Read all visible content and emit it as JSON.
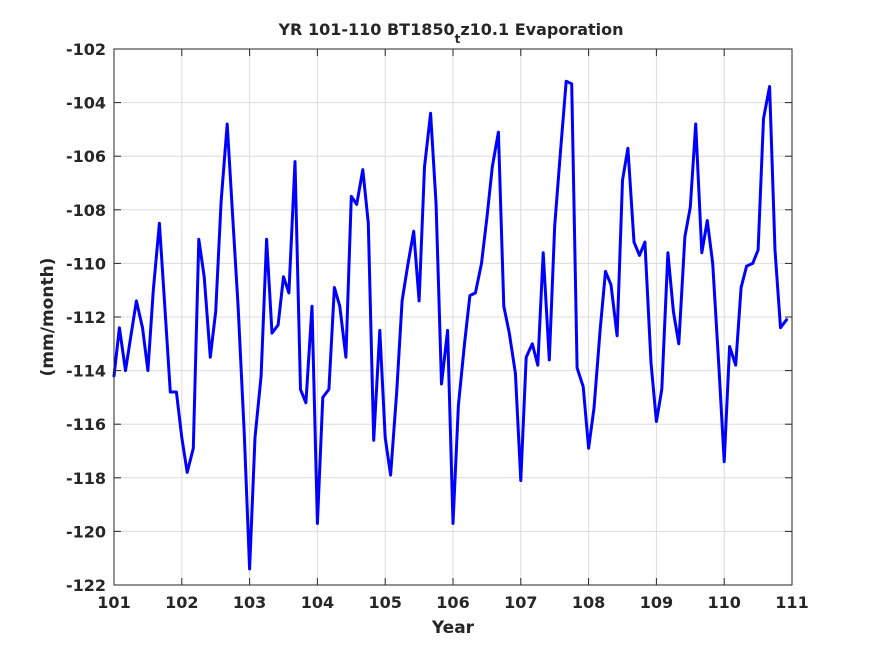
{
  "chart_data": {
    "type": "line",
    "title": {
      "prefix": "YR 101-110 BT1850",
      "subscript": "t",
      "suffix": "z10.1 Evaporation"
    },
    "xlabel": "Year",
    "ylabel": "(mm/month)",
    "xlim": [
      101,
      111
    ],
    "ylim": [
      -122,
      -102
    ],
    "xticks": [
      101,
      102,
      103,
      104,
      105,
      106,
      107,
      108,
      109,
      110,
      111
    ],
    "yticks": [
      -122,
      -120,
      -118,
      -116,
      -114,
      -112,
      -110,
      -108,
      -106,
      -104,
      -102
    ],
    "grid": true,
    "line_color": "#0000ff",
    "series": [
      {
        "x": [
          101.0,
          101.08,
          101.17,
          101.25,
          101.33,
          101.42,
          101.5,
          101.58,
          101.67,
          101.75,
          101.83,
          101.92,
          102.0,
          102.08,
          102.17,
          102.25,
          102.33,
          102.42,
          102.5,
          102.58,
          102.67,
          102.75,
          102.83,
          102.92,
          103.0,
          103.08,
          103.17,
          103.25,
          103.33,
          103.42,
          103.5,
          103.58,
          103.67,
          103.75,
          103.83,
          103.92,
          104.0,
          104.08,
          104.17,
          104.25,
          104.33,
          104.42,
          104.5,
          104.58,
          104.67,
          104.75,
          104.83,
          104.92,
          105.0,
          105.08,
          105.17,
          105.25,
          105.33,
          105.42,
          105.5,
          105.58,
          105.67,
          105.75,
          105.83,
          105.92,
          106.0,
          106.08,
          106.17,
          106.25,
          106.33,
          106.42,
          106.5,
          106.58,
          106.67,
          106.75,
          106.83,
          106.92,
          107.0,
          107.08,
          107.17,
          107.25,
          107.33,
          107.42,
          107.5,
          107.58,
          107.67,
          107.75,
          107.83,
          107.92,
          108.0,
          108.08,
          108.17,
          108.25,
          108.33,
          108.42,
          108.5,
          108.58,
          108.67,
          108.75,
          108.83,
          108.92,
          109.0,
          109.08,
          109.17,
          109.25,
          109.33,
          109.42,
          109.5,
          109.58,
          109.67,
          109.75,
          109.83,
          109.92,
          110.0,
          110.08,
          110.17,
          110.25,
          110.33,
          110.42,
          110.5,
          110.58,
          110.67,
          110.75,
          110.83,
          110.92
        ],
        "y": [
          -114.2,
          -112.4,
          -114.0,
          -112.7,
          -111.4,
          -112.4,
          -114.0,
          -111.0,
          -108.5,
          -111.6,
          -114.8,
          -114.8,
          -116.5,
          -117.8,
          -116.9,
          -109.1,
          -110.5,
          -113.5,
          -111.8,
          -107.7,
          -104.8,
          -108.2,
          -111.6,
          -116.3,
          -121.4,
          -116.5,
          -114.2,
          -109.1,
          -112.6,
          -112.3,
          -110.5,
          -111.1,
          -106.2,
          -114.7,
          -115.2,
          -111.6,
          -119.7,
          -115.0,
          -114.7,
          -110.9,
          -111.6,
          -113.5,
          -107.5,
          -107.8,
          -106.5,
          -108.5,
          -116.6,
          -112.5,
          -116.5,
          -117.9,
          -114.8,
          -111.4,
          -110.1,
          -108.8,
          -111.4,
          -106.4,
          -104.4,
          -107.8,
          -114.5,
          -112.5,
          -119.7,
          -115.3,
          -113.0,
          -111.2,
          -111.1,
          -110.0,
          -108.3,
          -106.4,
          -105.1,
          -111.6,
          -112.6,
          -114.1,
          -118.1,
          -113.5,
          -113.0,
          -113.8,
          -109.6,
          -113.6,
          -108.6,
          -106.0,
          -103.2,
          -103.3,
          -113.9,
          -114.6,
          -116.9,
          -115.4,
          -112.5,
          -110.3,
          -110.8,
          -112.7,
          -106.9,
          -105.7,
          -109.2,
          -109.7,
          -109.2,
          -113.7,
          -115.9,
          -114.7,
          -109.6,
          -111.8,
          -113.0,
          -109.0,
          -107.9,
          -104.8,
          -109.6,
          -108.4,
          -110.0,
          -113.8,
          -117.4,
          -113.1,
          -113.8,
          -110.9,
          -110.1,
          -110.0,
          -109.5,
          -104.6,
          -103.4,
          -109.5,
          -112.4,
          -112.1
        ]
      }
    ]
  }
}
